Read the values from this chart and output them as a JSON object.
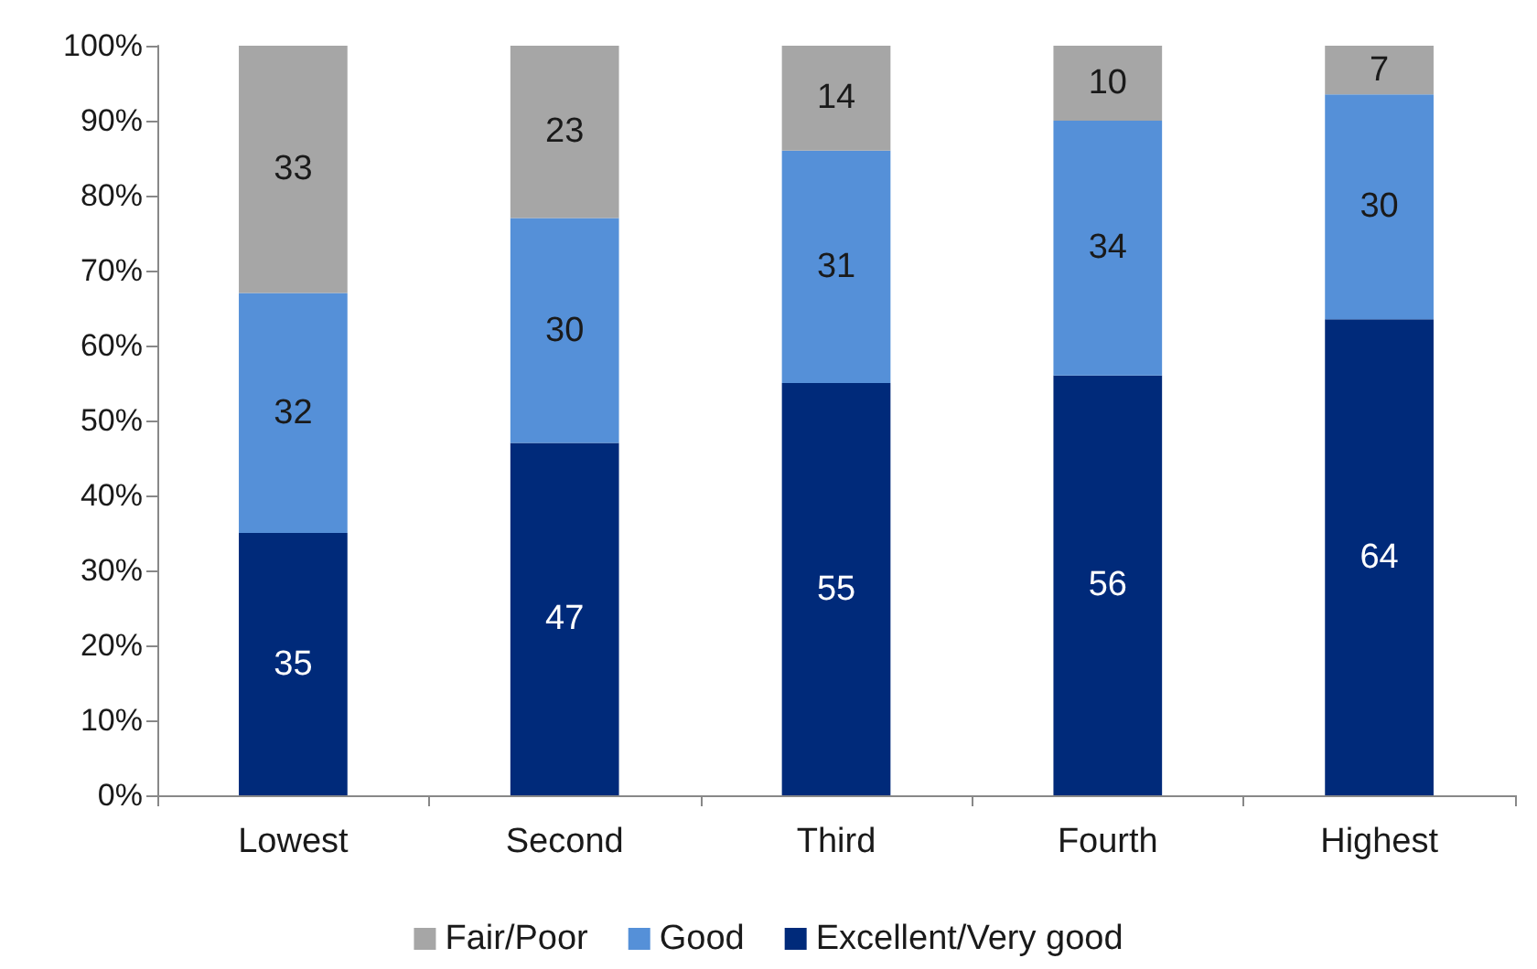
{
  "chart_data": {
    "type": "bar",
    "stacked": true,
    "categories": [
      "Lowest",
      "Second",
      "Third",
      "Fourth",
      "Highest"
    ],
    "series": [
      {
        "name": "Excellent/Very good",
        "color": "#002a7a",
        "values": [
          35,
          47,
          55,
          56,
          63.5
        ],
        "value_labels": [
          "35",
          "47",
          "55",
          "56",
          "64"
        ]
      },
      {
        "name": "Good",
        "color": "#5590d8",
        "values": [
          32,
          30,
          31,
          34,
          30
        ],
        "value_labels": [
          "32",
          "30",
          "31",
          "34",
          "30"
        ]
      },
      {
        "name": "Fair/Poor",
        "color": "#a6a6a6",
        "values": [
          33,
          23,
          14,
          10,
          6.5
        ],
        "value_labels": [
          "33",
          "23",
          "14",
          "10",
          "7"
        ]
      }
    ],
    "ylim": [
      0,
      100
    ],
    "yticks": [
      {
        "value": 0,
        "label": "0%"
      },
      {
        "value": 10,
        "label": "10%"
      },
      {
        "value": 20,
        "label": "20%"
      },
      {
        "value": 30,
        "label": "30%"
      },
      {
        "value": 40,
        "label": "40%"
      },
      {
        "value": 50,
        "label": "50%"
      },
      {
        "value": 60,
        "label": "60%"
      },
      {
        "value": 70,
        "label": "70%"
      },
      {
        "value": 80,
        "label": "80%"
      },
      {
        "value": 90,
        "label": "90%"
      },
      {
        "value": 100,
        "label": "100%"
      }
    ],
    "grid": false,
    "legend": "bottom"
  }
}
